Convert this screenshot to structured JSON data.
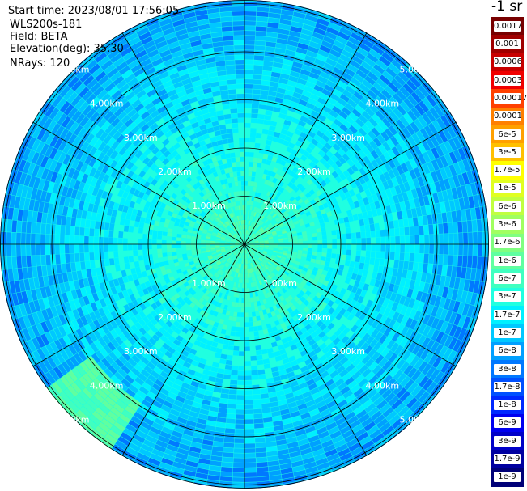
{
  "info": {
    "start_time": "Start time: 2023/08/01 17:56:05",
    "instrument": "WLS200s-181",
    "field": "Field: BETA",
    "elevation": "Elevation(deg): 35.30",
    "nrays": "NRays: 120"
  },
  "colorbar": {
    "unit_label": "-1 sr",
    "labels": [
      "0.0017",
      "0.001",
      "0.0006",
      "0.0003",
      "0.00017",
      "0.0001",
      "6e-5",
      "3e-5",
      "1.7e-5",
      "1e-5",
      "6e-6",
      "3e-6",
      "1.7e-6",
      "1e-6",
      "6e-7",
      "3e-7",
      "1.7e-7",
      "1e-7",
      "6e-8",
      "3e-8",
      "1.7e-8",
      "1e-8",
      "6e-9",
      "3e-9",
      "1.7e-9",
      "1e-9"
    ],
    "colors": [
      "#780000",
      "#a00000",
      "#c80000",
      "#f00000",
      "#ff4000",
      "#ff8000",
      "#ffa000",
      "#ffc000",
      "#ffff00",
      "#e0ff20",
      "#c0ff40",
      "#a0ff60",
      "#80ff80",
      "#60ffa0",
      "#40ffc0",
      "#20ffe0",
      "#00f0ff",
      "#00c8ff",
      "#00a0ff",
      "#0078ff",
      "#0050ff",
      "#0028ff",
      "#0000f0",
      "#0000c8",
      "#0000a0",
      "#000078"
    ]
  },
  "chart_data": {
    "type": "heatmap",
    "projection": "polar PPI",
    "field": "BETA",
    "nrays": 120,
    "range_rings_labels": [
      "1.00km",
      "2.00km",
      "3.00km",
      "4.00km",
      "5.00km"
    ],
    "spokes_deg": [
      0,
      30,
      60,
      90,
      120,
      150,
      180,
      210,
      240,
      270,
      300,
      330
    ],
    "grid": true,
    "colorscale": "jet (logarithmic)",
    "value_range": [
      1e-09,
      0.0017
    ]
  }
}
